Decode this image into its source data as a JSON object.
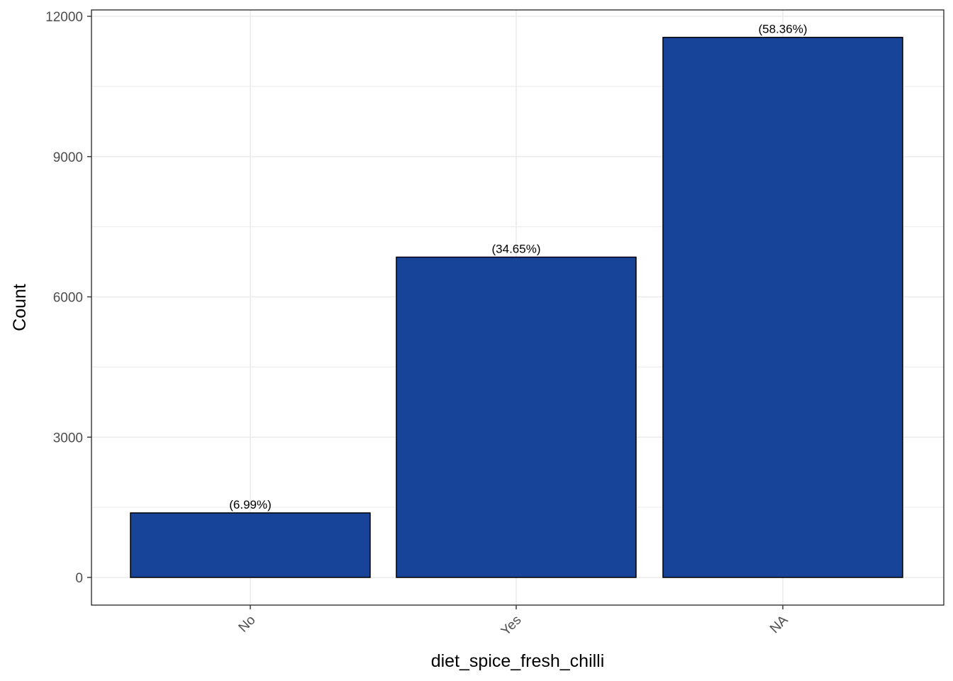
{
  "chart_data": {
    "type": "bar",
    "categories": [
      "No",
      "Yes",
      "NA"
    ],
    "values": [
      1380,
      6850,
      11550
    ],
    "data_labels": [
      "(6.99%)",
      "(34.65%)",
      "(58.36%)"
    ],
    "title": "",
    "xlabel": "diet_spice_fresh_chilli",
    "ylabel": "Count",
    "ylim": [
      -960,
      12000
    ],
    "yticks": [
      0,
      3000,
      6000,
      9000,
      12000
    ],
    "ytick_labels": [
      "0",
      "3000",
      "6000",
      "9000",
      "12000"
    ],
    "grid": true,
    "legend": "none",
    "colors": {
      "bar_fill": "#174499",
      "bar_stroke": "#000000",
      "grid": "#ebebeb",
      "panel_border": "#333333",
      "tick_text": "#4d4d4d",
      "background": "#ffffff"
    }
  }
}
